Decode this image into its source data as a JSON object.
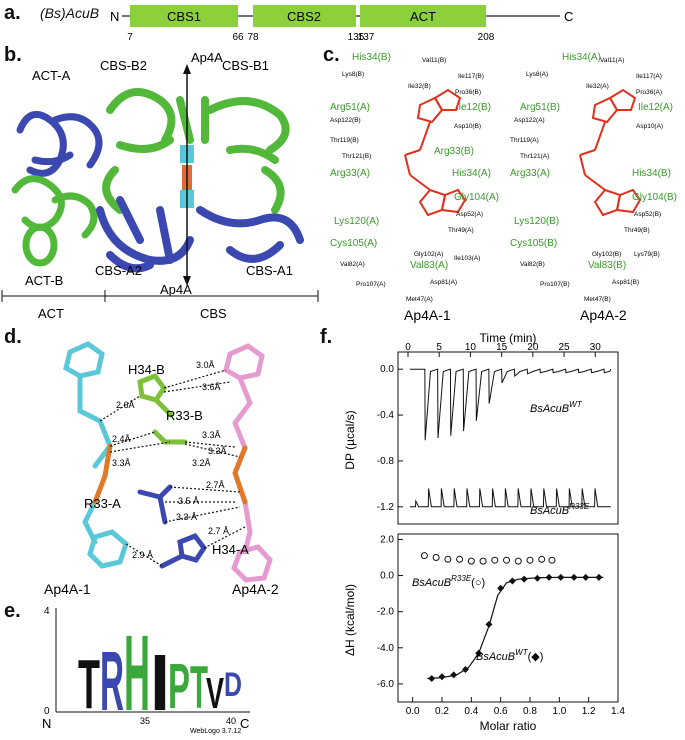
{
  "panel_a": {
    "letter": "a.",
    "protein": "(Bs)AcuB",
    "n_term": "N",
    "c_term": "C",
    "domains": [
      {
        "name": "CBS1",
        "start": "7",
        "end": "66"
      },
      {
        "name": "CBS2",
        "start": "78",
        "end": "135"
      },
      {
        "name": "ACT",
        "start": "137",
        "end": "208"
      }
    ],
    "color": "#8cd13c"
  },
  "panel_b": {
    "letter": "b.",
    "labels": {
      "act_a": "ACT-A",
      "act_b": "ACT-B",
      "cbs_b2": "CBS-B2",
      "cbs_b1": "CBS-B1",
      "cbs_a2": "CBS-A2",
      "cbs_a1": "CBS-A1",
      "ap4a_top": "Ap4A",
      "ap4a_bottom": "Ap4A",
      "act_region": "ACT",
      "cbs_region": "CBS"
    },
    "colors": {
      "chain_a": "#3a48b0",
      "chain_b": "#52b83a",
      "ligand": "#e06a3a"
    }
  },
  "panel_c": {
    "letter": "c.",
    "left": {
      "caption": "Ap4A-1",
      "green_labels": [
        "His34(B)",
        "Arg51(A)",
        "Ile12(B)",
        "Arg33(B)",
        "His34(A)",
        "Arg33(A)",
        "Gly104(A)",
        "Lys120(A)",
        "Cys105(A)",
        "Val83(A)"
      ],
      "black_labels": [
        "Val11(B)",
        "Ile117(B)",
        "Lys8(B)",
        "Ile32(B)",
        "Pro36(B)",
        "Asp122(B)",
        "Asp10(B)",
        "Thr119(B)",
        "Thr121(B)",
        "Asp52(A)",
        "Thr49(A)",
        "Gly102(A)",
        "Ile103(A)",
        "Val82(A)",
        "Pro107(A)",
        "Asp81(A)",
        "Met47(A)"
      ]
    },
    "right": {
      "caption": "Ap4A-2",
      "green_labels": [
        "His34(A)",
        "Arg51(B)",
        "Ile12(A)",
        "His34(B)",
        "Arg33(A)",
        "Gly104(B)",
        "Lys120(B)",
        "Cys105(B)",
        "Val83(B)"
      ],
      "black_labels": [
        "Val11(A)",
        "Ile117(A)",
        "Lys8(A)",
        "Ile32(A)",
        "Pro36(A)",
        "Asp122(A)",
        "Asp10(A)",
        "Thr119(A)",
        "Thr121(A)",
        "Asp52(B)",
        "Thr49(B)",
        "Gly102(B)",
        "Lys79(B)",
        "Val82(B)",
        "Pro107(B)",
        "Asp81(B)",
        "Met47(B)"
      ]
    }
  },
  "panel_d": {
    "letter": "d.",
    "residues": [
      "H34-B",
      "R33-B",
      "R33-A",
      "H34-A"
    ],
    "distances": [
      "3.0Å",
      "3.6Å",
      "2.6Å",
      "2.4Å",
      "3.3Å",
      "3.3Å",
      "3.3Å",
      "3.2Å",
      "2.7Å",
      "3.5 Å",
      "3.3 Å",
      "2.7 Å",
      "2.9 Å"
    ],
    "captions": [
      "Ap4A-1",
      "Ap4A-2"
    ]
  },
  "panel_e": {
    "letter": "e.",
    "y_top": "4",
    "y_bottom": "0",
    "n_term": "N",
    "c_term": "C",
    "tick_35": "35",
    "tick_40": "40",
    "credit": "WebLogo 3.7.12",
    "letters": [
      "T",
      "R",
      "H",
      "I",
      "P",
      "T",
      "V",
      "D"
    ]
  },
  "panel_f": {
    "letter": "f.",
    "time_label": "Time (min)",
    "time_ticks": [
      "0",
      "5",
      "10",
      "15",
      "20",
      "25",
      "30"
    ],
    "dp_label": "DP (µcal/s)",
    "dp_ticks": [
      "0.0",
      "-0.4",
      "-0.8",
      "-1.2"
    ],
    "wt_trace_label": "BsAcuB",
    "wt_sup": "WT",
    "r33e_trace_label": "BsAcuB",
    "r33e_sup": "R33E",
    "dh_label": "ΔH (kcal/mol)",
    "dh_ticks": [
      "2.0",
      "0.0",
      "-2.0",
      "-4.0",
      "-6.0"
    ],
    "molar_label": "Molar ratio",
    "molar_ticks": [
      "0.0",
      "0.2",
      "0.4",
      "0.6",
      "0.8",
      "1.0",
      "1.2",
      "1.4"
    ],
    "legend_r33e": "BsAcuB",
    "legend_r33e_sup": "R33E",
    "legend_r33e_sym": "(○)",
    "legend_wt": "BsAcuB",
    "legend_wt_sup": "WT",
    "legend_wt_sym": "(◆)"
  },
  "chart_data": {
    "type": "scatter",
    "xlabel": "Molar ratio",
    "ylabel": "ΔH (kcal/mol)",
    "xlim": [
      -0.1,
      1.4
    ],
    "ylim": [
      -7.0,
      2.3
    ],
    "series": [
      {
        "name": "BsAcuB WT (◆)",
        "x": [
          0.13,
          0.2,
          0.28,
          0.36,
          0.45,
          0.52,
          0.6,
          0.68,
          0.76,
          0.85,
          0.93,
          1.01,
          1.1,
          1.18,
          1.27
        ],
        "y": [
          -5.7,
          -5.6,
          -5.5,
          -5.2,
          -4.3,
          -2.7,
          -0.7,
          -0.3,
          -0.2,
          -0.15,
          -0.1,
          -0.1,
          -0.1,
          -0.1,
          -0.1
        ]
      },
      {
        "name": "BsAcuB R33E (○)",
        "x": [
          0.08,
          0.16,
          0.24,
          0.32,
          0.4,
          0.48,
          0.56,
          0.64,
          0.72,
          0.8,
          0.88,
          0.95
        ],
        "y": [
          1.1,
          1.0,
          0.9,
          0.9,
          0.8,
          0.8,
          0.85,
          0.85,
          0.8,
          0.85,
          0.9,
          0.85
        ]
      }
    ],
    "fit_line": {
      "x": [
        0.1,
        0.2,
        0.3,
        0.38,
        0.45,
        0.52,
        0.58,
        0.64,
        0.72,
        0.85,
        1.0,
        1.3
      ],
      "y": [
        -5.7,
        -5.65,
        -5.5,
        -5.1,
        -4.3,
        -2.8,
        -1.1,
        -0.4,
        -0.2,
        -0.12,
        -0.1,
        -0.1
      ]
    }
  }
}
